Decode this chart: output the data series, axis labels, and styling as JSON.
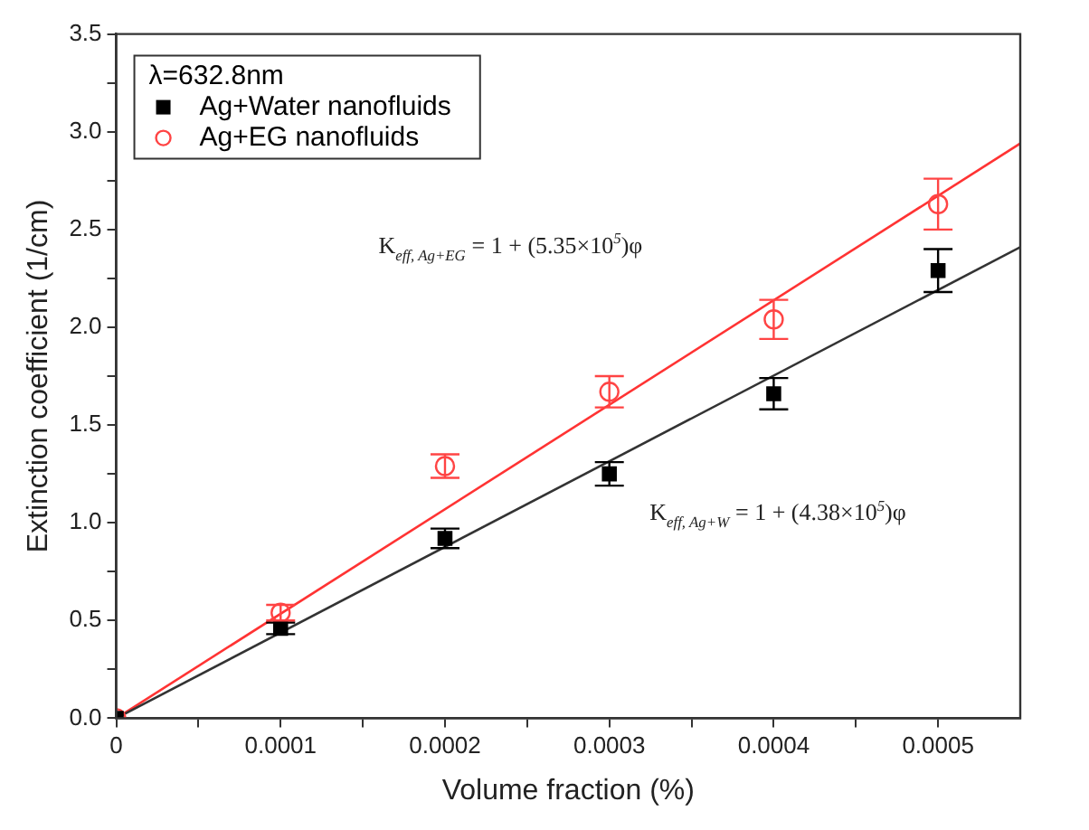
{
  "chart_data": {
    "type": "scatter",
    "xlabel": "Volume fraction (%)",
    "ylabel": "Extinction coefficient (1/cm)",
    "legend_title": "λ=632.8nm",
    "legend": "top left",
    "grid": false,
    "xlim": [
      0,
      0.00055
    ],
    "ylim": [
      0,
      3.5
    ],
    "xticks": [
      0,
      {
        "value": 5e-05,
        "label": null
      },
      {
        "value": 0.0001,
        "label": "0.0001"
      },
      {
        "value": 0.00015,
        "label": null
      },
      {
        "value": 0.0002,
        "label": "0.0002"
      },
      {
        "value": 0.00025,
        "label": null
      },
      {
        "value": 0.0003,
        "label": "0.0003"
      },
      {
        "value": 0.00035,
        "label": null
      },
      {
        "value": 0.0004,
        "label": "0.0004"
      },
      {
        "value": 0.00045,
        "label": null
      },
      {
        "value": 0.0005,
        "label": "0.0005"
      }
    ],
    "yticks": [
      {
        "value": 0,
        "label": "0.0"
      },
      {
        "value": 0.25,
        "label": null
      },
      {
        "value": 0.5,
        "label": "0.5"
      },
      {
        "value": 0.75,
        "label": null
      },
      {
        "value": 1,
        "label": "1.0"
      },
      {
        "value": 1.25,
        "label": null
      },
      {
        "value": 1.5,
        "label": "1.5"
      },
      {
        "value": 1.75,
        "label": null
      },
      {
        "value": 2,
        "label": "2.0"
      },
      {
        "value": 2.25,
        "label": null
      },
      {
        "value": 2.5,
        "label": "2.5"
      },
      {
        "value": 2.75,
        "label": null
      },
      {
        "value": 3,
        "label": "3.0"
      },
      {
        "value": 3.25,
        "label": null
      },
      {
        "value": 3.5,
        "label": "3.5"
      }
    ],
    "series": [
      {
        "name": "Ag+Water nanofluids",
        "type": "scatter",
        "marker": "square",
        "color": "#000000",
        "x": [
          0,
          0.0001,
          0.0002,
          0.0003,
          0.0004,
          0.0005
        ],
        "values": [
          0,
          0.46,
          0.92,
          1.25,
          1.66,
          2.29
        ],
        "errors": [
          null,
          0.03,
          0.05,
          0.06,
          0.08,
          0.11
        ]
      },
      {
        "name": "Ag+EG nanofluids",
        "type": "scatter",
        "marker": "circle",
        "color": "#ff4444",
        "x": [
          0,
          0.0001,
          0.0002,
          0.0003,
          0.0004,
          0.0005
        ],
        "values": [
          0,
          0.54,
          1.29,
          1.67,
          2.04,
          2.63
        ],
        "errors": [
          null,
          0.04,
          0.06,
          0.08,
          0.1,
          0.13
        ]
      },
      {
        "type": "line",
        "marker": "none",
        "color": "#333333",
        "x": [
          0,
          0.00055
        ],
        "values": [
          0,
          2.41
        ]
      },
      {
        "type": "line",
        "marker": "none",
        "color": "#ff3333",
        "x": [
          0,
          0.00055
        ],
        "values": [
          0,
          2.94
        ]
      }
    ],
    "annotations": [
      "K$_{eff, Ag+EG}$ = 1 + (5.35×10$^{5}$)φ",
      "K$_{eff, Ag+W}$ = 1 + (4.38×10$^{5}$)φ"
    ]
  }
}
